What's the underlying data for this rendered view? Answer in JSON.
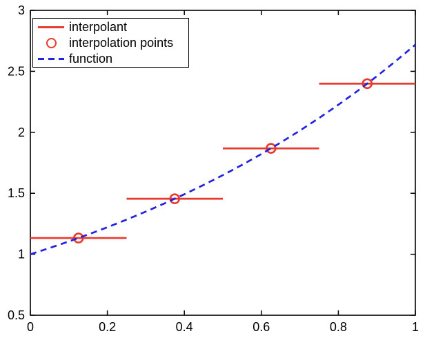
{
  "figure": {
    "background": "#ffffff",
    "axes_color": "#000000"
  },
  "chart_data": {
    "type": "line",
    "title": "",
    "xlabel": "",
    "ylabel": "",
    "xlim": [
      0,
      1
    ],
    "ylim": [
      0.5,
      3
    ],
    "xtick_values": [
      0,
      0.2,
      0.4,
      0.6,
      0.8,
      1
    ],
    "xtick_labels": [
      "0",
      "0.2",
      "0.4",
      "0.6",
      "0.8",
      "1"
    ],
    "ytick_values": [
      0.5,
      1,
      1.5,
      2,
      2.5,
      3
    ],
    "ytick_labels": [
      "0.5",
      "1",
      "1.5",
      "2",
      "2.5",
      "3"
    ],
    "grid": false,
    "legend": {
      "position": "northwest",
      "entries": [
        {
          "label": "interpolant",
          "swatch": "solid-line",
          "color": "#e7392c"
        },
        {
          "label": "interpolation points",
          "swatch": "circle-marker",
          "color": "#e7392c"
        },
        {
          "label": "function",
          "swatch": "dashed-line",
          "color": "#2222e0"
        }
      ]
    },
    "series": [
      {
        "name": "interpolant",
        "type": "piecewise_constant_segments",
        "line_style": "solid",
        "color": "#e7392c",
        "segments": [
          {
            "x_start": 0.0,
            "x_end": 0.25,
            "y": 1.1331
          },
          {
            "x_start": 0.25,
            "x_end": 0.5,
            "y": 1.455
          },
          {
            "x_start": 0.5,
            "x_end": 0.75,
            "y": 1.8682
          },
          {
            "x_start": 0.75,
            "x_end": 1.0,
            "y": 2.3989
          }
        ]
      },
      {
        "name": "interpolation points",
        "type": "scatter",
        "marker": "open-circle",
        "color": "#e7392c",
        "points": [
          [
            0.125,
            1.1331
          ],
          [
            0.375,
            1.455
          ],
          [
            0.625,
            1.8682
          ],
          [
            0.875,
            2.3989
          ]
        ]
      },
      {
        "name": "function",
        "type": "line",
        "line_style": "dashed",
        "color": "#2222e0",
        "expression": "exp(x)",
        "x": [
          0,
          0.05,
          0.1,
          0.15,
          0.2,
          0.25,
          0.3,
          0.35,
          0.4,
          0.45,
          0.5,
          0.55,
          0.6,
          0.65,
          0.7,
          0.75,
          0.8,
          0.85,
          0.9,
          0.95,
          1.0
        ],
        "y": [
          1.0,
          1.0513,
          1.1052,
          1.1618,
          1.2214,
          1.284,
          1.3499,
          1.4191,
          1.4918,
          1.5683,
          1.6487,
          1.7333,
          1.8221,
          1.9155,
          2.0138,
          2.117,
          2.2255,
          2.3396,
          2.4596,
          2.5857,
          2.7183
        ]
      }
    ]
  }
}
